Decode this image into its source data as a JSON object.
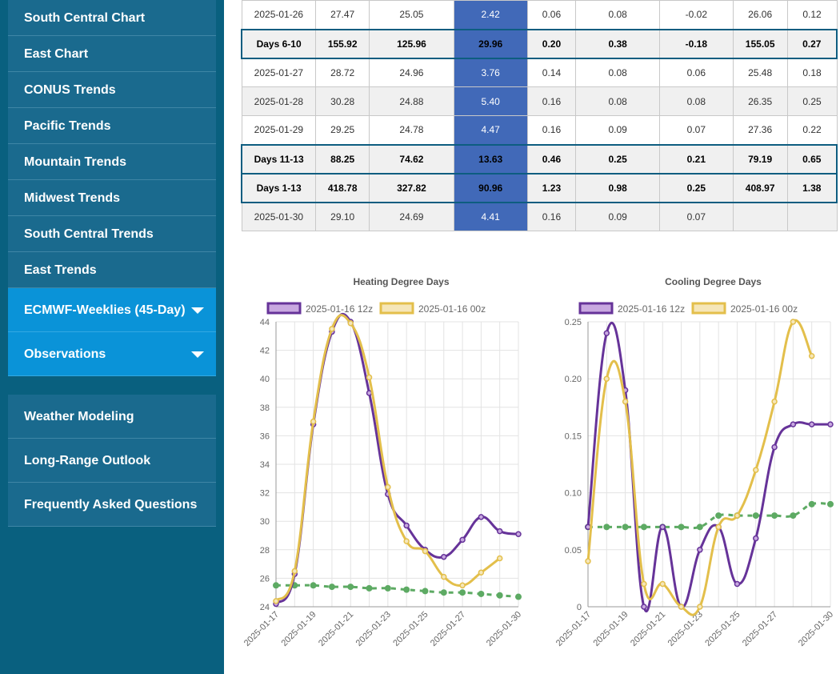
{
  "sidebar": {
    "items": [
      {
        "label": "South Central Chart"
      },
      {
        "label": "East Chart"
      },
      {
        "label": "CONUS Trends"
      },
      {
        "label": "Pacific Trends"
      },
      {
        "label": "Mountain Trends"
      },
      {
        "label": "Midwest Trends"
      },
      {
        "label": "South Central Trends"
      },
      {
        "label": "East Trends"
      }
    ],
    "dropdowns": [
      {
        "label": "ECMWF-Weeklies (45-Day)"
      },
      {
        "label": "Observations"
      }
    ],
    "links": [
      {
        "label": "Weather Modeling"
      },
      {
        "label": "Long-Range Outlook"
      },
      {
        "label": "Frequently Asked Questions"
      }
    ]
  },
  "table": {
    "rows": [
      {
        "type": "day",
        "cells": [
          "2025-01-26",
          "27.47",
          "25.05",
          "2.42",
          "0.06",
          "0.08",
          "-0.02",
          "26.06",
          "0.12"
        ]
      },
      {
        "type": "summary",
        "cells": [
          "Days 6-10",
          "155.92",
          "125.96",
          "29.96",
          "0.20",
          "0.38",
          "-0.18",
          "155.05",
          "0.27"
        ]
      },
      {
        "type": "day",
        "cells": [
          "2025-01-27",
          "28.72",
          "24.96",
          "3.76",
          "0.14",
          "0.08",
          "0.06",
          "25.48",
          "0.18"
        ]
      },
      {
        "type": "day",
        "cells": [
          "2025-01-28",
          "30.28",
          "24.88",
          "5.40",
          "0.16",
          "0.08",
          "0.08",
          "26.35",
          "0.25"
        ]
      },
      {
        "type": "day",
        "cells": [
          "2025-01-29",
          "29.25",
          "24.78",
          "4.47",
          "0.16",
          "0.09",
          "0.07",
          "27.36",
          "0.22"
        ]
      },
      {
        "type": "summary",
        "cells": [
          "Days 11-13",
          "88.25",
          "74.62",
          "13.63",
          "0.46",
          "0.25",
          "0.21",
          "79.19",
          "0.65"
        ]
      },
      {
        "type": "summary",
        "cells": [
          "Days 1-13",
          "418.78",
          "327.82",
          "90.96",
          "1.23",
          "0.98",
          "0.25",
          "408.97",
          "1.38"
        ]
      },
      {
        "type": "day",
        "cells": [
          "2025-01-30",
          "29.10",
          "24.69",
          "4.41",
          "0.16",
          "0.09",
          "0.07",
          "",
          ""
        ]
      }
    ]
  },
  "chart_data": [
    {
      "type": "line",
      "title": "Heating Degree Days",
      "x": [
        "2025-01-17",
        "2025-01-18",
        "2025-01-19",
        "2025-01-20",
        "2025-01-21",
        "2025-01-22",
        "2025-01-23",
        "2025-01-24",
        "2025-01-25",
        "2025-01-26",
        "2025-01-27",
        "2025-01-28",
        "2025-01-29",
        "2025-01-30"
      ],
      "xticks": [
        "2025-01-17",
        "2025-01-19",
        "2025-01-21",
        "2025-01-23",
        "2025-01-25",
        "2025-01-27",
        "2025-01-30"
      ],
      "ylim": [
        24,
        44
      ],
      "yticks": [
        24,
        26,
        28,
        30,
        32,
        34,
        36,
        38,
        40,
        42,
        44
      ],
      "series": [
        {
          "name": "2025-01-16 12z",
          "color": "#663399",
          "fill": "#c8a8e0",
          "values": [
            24.2,
            26.3,
            36.8,
            43.3,
            44.0,
            39.0,
            31.9,
            29.7,
            28.0,
            27.5,
            28.7,
            30.3,
            29.3,
            29.1
          ]
        },
        {
          "name": "2025-01-16 00z",
          "color": "#e3bf4b",
          "fill": "#f5e6b8",
          "values": [
            24.4,
            26.5,
            37.0,
            43.5,
            43.9,
            40.1,
            32.4,
            28.6,
            27.9,
            26.1,
            25.5,
            26.4,
            27.4,
            null
          ]
        },
        {
          "name": "",
          "color": "#5daa63",
          "dashed": true,
          "values": [
            25.5,
            25.5,
            25.5,
            25.4,
            25.4,
            25.3,
            25.3,
            25.2,
            25.1,
            25.0,
            25.0,
            24.9,
            24.8,
            24.7
          ]
        }
      ]
    },
    {
      "type": "line",
      "title": "Cooling Degree Days",
      "x": [
        "2025-01-17",
        "2025-01-18",
        "2025-01-19",
        "2025-01-20",
        "2025-01-21",
        "2025-01-22",
        "2025-01-23",
        "2025-01-24",
        "2025-01-25",
        "2025-01-26",
        "2025-01-27",
        "2025-01-28",
        "2025-01-29",
        "2025-01-30"
      ],
      "xticks": [
        "2025-01-17",
        "2025-01-19",
        "2025-01-21",
        "2025-01-23",
        "2025-01-25",
        "2025-01-27",
        "2025-01-30"
      ],
      "ylim": [
        0,
        0.25
      ],
      "yticks": [
        "0",
        "0.05",
        "0.10",
        "0.15",
        "0.20",
        "0.25"
      ],
      "series": [
        {
          "name": "2025-01-16 12z",
          "color": "#663399",
          "fill": "#c8a8e0",
          "values": [
            0.07,
            0.24,
            0.19,
            0.0,
            0.07,
            0.0,
            0.05,
            0.07,
            0.02,
            0.06,
            0.14,
            0.16,
            0.16,
            0.16
          ]
        },
        {
          "name": "2025-01-16 00z",
          "color": "#e3bf4b",
          "fill": "#f5e6b8",
          "values": [
            0.04,
            0.2,
            0.18,
            0.02,
            0.02,
            0.0,
            0.0,
            0.07,
            0.08,
            0.12,
            0.18,
            0.25,
            0.22,
            null
          ]
        },
        {
          "name": "",
          "color": "#5daa63",
          "dashed": true,
          "values": [
            0.07,
            0.07,
            0.07,
            0.07,
            0.07,
            0.07,
            0.07,
            0.08,
            0.08,
            0.08,
            0.08,
            0.08,
            0.09,
            0.09
          ]
        }
      ]
    }
  ]
}
